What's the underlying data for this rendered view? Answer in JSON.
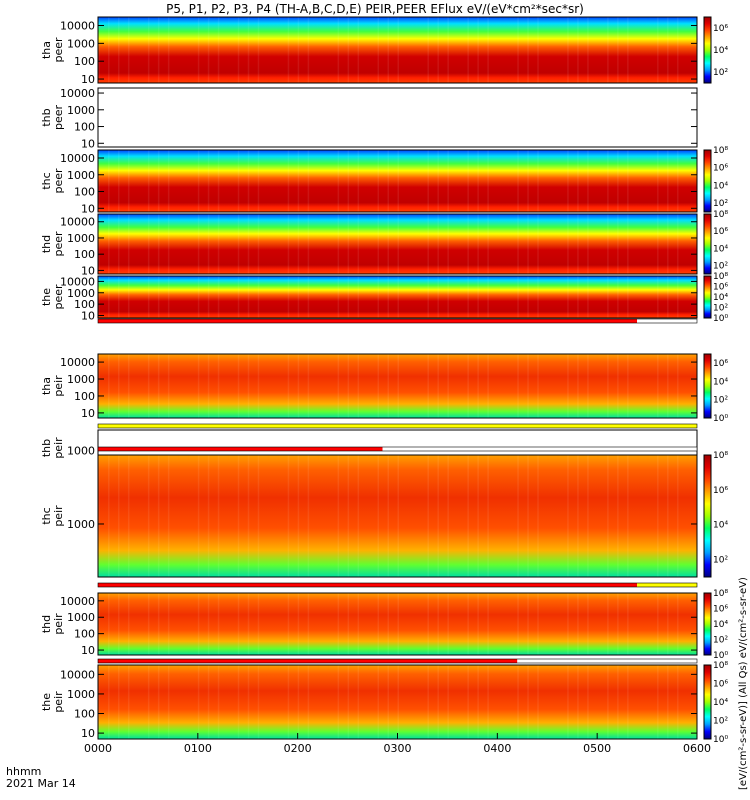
{
  "chart_data": {
    "type": "heatmap",
    "title": "P5, P1, P2, P3, P4 (TH-A,B,C,D,E) PEIR,PEER EFlux eV/(eV*cm²*sec*sr)",
    "x_axis": {
      "label_line1": "hhmm",
      "label_line2": "2021 Mar 14",
      "ticks": [
        "0000",
        "0100",
        "0200",
        "0300",
        "0400",
        "0500",
        "0600"
      ],
      "range_hours": [
        0,
        6
      ]
    },
    "y_scale": "log",
    "colorbar_scale": "log",
    "colorbar_label": "[eV/(cm²-s-sr-eV)] (All Qs) eV/(cm²-s-sr-eV)",
    "panels": [
      {
        "id": "tha-peer",
        "label": "tha\npeer",
        "y_ticks": [
          "10",
          "100",
          "1000",
          "10000"
        ],
        "ylim": [
          6,
          30000
        ],
        "has_data": true,
        "cbar_ticks": [
          "10⁶",
          "10⁴",
          "10²"
        ],
        "cbar_range_exp": [
          1,
          7
        ]
      },
      {
        "id": "thb-peer",
        "label": "thb\npeer",
        "y_ticks": [
          "10",
          "100",
          "1000",
          "10000"
        ],
        "ylim": [
          6,
          20000
        ],
        "has_data": false,
        "cbar_ticks": [],
        "cbar_range_exp": [
          1,
          7
        ]
      },
      {
        "id": "thc-peer",
        "label": "thc\npeer",
        "y_ticks": [
          "10",
          "100",
          "1000",
          "10000"
        ],
        "ylim": [
          6,
          30000
        ],
        "has_data": true,
        "cbar_ticks": [
          "10⁸",
          "10⁶",
          "10⁴",
          "10²"
        ],
        "cbar_range_exp": [
          1,
          8
        ]
      },
      {
        "id": "thd-peer",
        "label": "thd\npeer",
        "y_ticks": [
          "10",
          "100",
          "1000",
          "10000"
        ],
        "ylim": [
          6,
          30000
        ],
        "has_data": true,
        "cbar_ticks": [
          "10⁸",
          "10⁶",
          "10⁴",
          "10²"
        ],
        "cbar_range_exp": [
          1,
          8
        ]
      },
      {
        "id": "the-peer",
        "label": "the\npeer",
        "y_ticks": [
          "10",
          "100",
          "1000",
          "10000"
        ],
        "ylim": [
          6,
          30000
        ],
        "has_data": true,
        "cbar_ticks": [
          "10⁸",
          "10⁶",
          "10⁴",
          "10²",
          "10⁰"
        ],
        "cbar_range_exp": [
          0,
          8
        ]
      },
      {
        "id": "tha-peir",
        "label": "tha\npeir",
        "y_ticks": [
          "10",
          "100",
          "1000",
          "10000"
        ],
        "ylim": [
          5,
          30000
        ],
        "has_data": true,
        "cbar_ticks": [
          "10⁶",
          "10⁴",
          "10²",
          "10⁰"
        ],
        "cbar_range_exp": [
          0,
          7
        ]
      },
      {
        "id": "thb-peir",
        "label": "thb\npeir",
        "y_ticks": [
          "1000"
        ],
        "ylim": [
          100,
          20000
        ],
        "has_data": false,
        "cbar_ticks": [],
        "cbar_range_exp": [
          0,
          7
        ]
      },
      {
        "id": "thc-peir",
        "label": "thc\npeir",
        "y_ticks": [
          "1000"
        ],
        "ylim": [
          100,
          20000
        ],
        "has_data": true,
        "cbar_ticks": [
          "10⁸",
          "10⁶",
          "10⁴",
          "10²"
        ],
        "cbar_range_exp": [
          1,
          8
        ]
      },
      {
        "id": "thd-peir",
        "label": "thd\npeir",
        "y_ticks": [
          "10",
          "100",
          "1000",
          "10000"
        ],
        "ylim": [
          5,
          30000
        ],
        "has_data": true,
        "cbar_ticks": [
          "10⁸",
          "10⁶",
          "10⁴",
          "10²",
          "10⁰"
        ],
        "cbar_range_exp": [
          0,
          8
        ]
      },
      {
        "id": "the-peir",
        "label": "the\npeir",
        "y_ticks": [
          "10",
          "100",
          "1000",
          "10000"
        ],
        "ylim": [
          5,
          30000
        ],
        "has_data": true,
        "cbar_ticks": [
          "10⁸",
          "10⁶",
          "10⁴",
          "10²",
          "10⁰"
        ],
        "cbar_range_exp": [
          0,
          8
        ]
      }
    ],
    "mode_bars": [
      {
        "after_panel": "the-peer",
        "segments": [
          {
            "from": 0,
            "to": 5.4,
            "color": "#ff0000"
          },
          {
            "from": 5.4,
            "to": 6,
            "color": "#ffffff"
          }
        ]
      },
      {
        "after_panel": "tha-peir",
        "segments": [
          {
            "from": 0,
            "to": 6,
            "color": "#ffff00"
          }
        ]
      },
      {
        "after_panel": "thb-peir",
        "segments": [
          {
            "from": 0,
            "to": 2.85,
            "color": "#ff0000"
          },
          {
            "from": 2.85,
            "to": 6,
            "color": "#ffffff"
          }
        ]
      },
      {
        "after_panel": "thc-peir",
        "segments": [
          {
            "from": 0,
            "to": 5.4,
            "color": "#ff0000"
          },
          {
            "from": 5.4,
            "to": 6,
            "color": "#ffff00"
          }
        ]
      },
      {
        "after_panel": "thd-peir",
        "segments": [
          {
            "from": 0,
            "to": 4.2,
            "color": "#ff0000"
          },
          {
            "from": 4.2,
            "to": 6,
            "color": "#ffffff"
          }
        ]
      }
    ],
    "colormap": [
      "#000080",
      "#0000ff",
      "#00a0ff",
      "#00ffff",
      "#00ff60",
      "#a0ff00",
      "#ffff00",
      "#ffa000",
      "#ff4000",
      "#e00000",
      "#a00000"
    ]
  }
}
